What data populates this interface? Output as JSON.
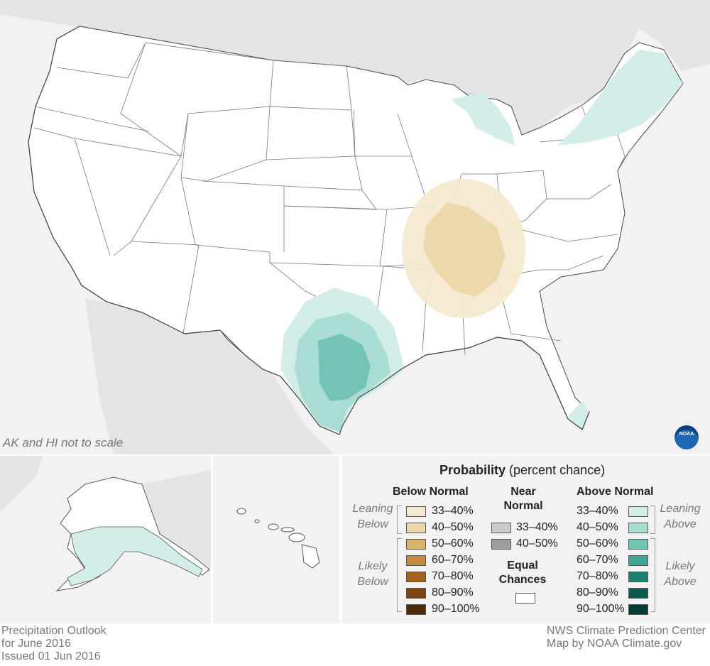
{
  "map": {
    "scale_note": "AK and HI not to scale",
    "logo_text": "NOAA",
    "land_color": "#ffffff",
    "background_color": "#f2f2f2",
    "regions": [
      {
        "name": "Ohio Valley / Mid-South",
        "category": "Below Normal",
        "probabilities": [
          "33–40%",
          "40–50%"
        ]
      },
      {
        "name": "Texas",
        "category": "Above Normal",
        "probabilities": [
          "33–40%",
          "40–50%",
          "50–60%"
        ]
      },
      {
        "name": "Northeast / New England",
        "category": "Above Normal",
        "probabilities": [
          "33–40%"
        ]
      },
      {
        "name": "Michigan",
        "category": "Above Normal",
        "probabilities": [
          "33–40%"
        ]
      },
      {
        "name": "South Florida",
        "category": "Above Normal",
        "probabilities": [
          "33–40%"
        ]
      },
      {
        "name": "Southern Alaska",
        "category": "Above Normal",
        "probabilities": [
          "33–40%"
        ]
      }
    ]
  },
  "legend": {
    "title_bold": "Probability",
    "title_rest": "(percent chance)",
    "below": {
      "header": "Below Normal",
      "levels": [
        "33–40%",
        "40–50%",
        "50–60%",
        "60–70%",
        "70–80%",
        "80–90%",
        "90–100%"
      ],
      "colors": [
        "#f6ead0",
        "#ecd7a8",
        "#d9b46f",
        "#c58c3d",
        "#a2621d",
        "#7c4511",
        "#4e2b07"
      ]
    },
    "near": {
      "header_1": "Near",
      "header_2": "Normal",
      "levels": [
        "33–40%",
        "40–50%"
      ],
      "colors": [
        "#cccccc",
        "#9e9e9e"
      ]
    },
    "above": {
      "header": "Above Normal",
      "levels": [
        "33–40%",
        "40–50%",
        "50–60%",
        "60–70%",
        "70–80%",
        "80–90%",
        "90–100%"
      ],
      "colors": [
        "#d3ede8",
        "#a9dcd3",
        "#74c4b5",
        "#3fa595",
        "#1d7f70",
        "#0d5a4e",
        "#063a32"
      ]
    },
    "equal_1": "Equal",
    "equal_2": "Chances",
    "leaning_below_1": "Leaning",
    "leaning_below_2": "Below",
    "likely_below_1": "Likely",
    "likely_below_2": "Below",
    "leaning_above_1": "Leaning",
    "leaning_above_2": "Above",
    "likely_above_1": "Likely",
    "likely_above_2": "Above"
  },
  "footer": {
    "left_1": "Precipitation Outlook",
    "left_2": "for June 2016",
    "left_3": "Issued 01 Jun 2016",
    "right_1": "NWS Climate Prediction Center",
    "right_2": "Map by NOAA Climate.gov"
  }
}
